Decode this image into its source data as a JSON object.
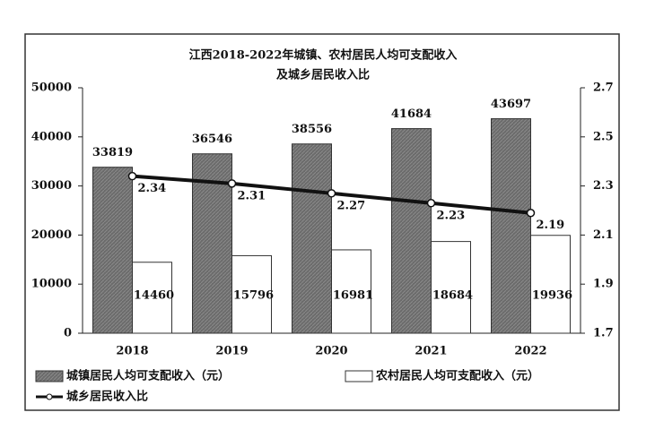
{
  "chart_data": {
    "type": "bar",
    "title": "江西2018-2022年城镇、农村居民人均可支配收入",
    "subtitle": "及城乡居民收入比",
    "categories": [
      "2018",
      "2019",
      "2020",
      "2021",
      "2022"
    ],
    "series": [
      {
        "name": "城镇居民人均可支配收入（元）",
        "color": "#6b6b6b",
        "values": [
          33819,
          36546,
          38556,
          41684,
          43697
        ]
      },
      {
        "name": "农村居民人均可支配收入（元）",
        "color": "#ffffff",
        "values": [
          14460,
          15796,
          16981,
          18684,
          19936
        ]
      },
      {
        "name": "城乡居民收入比",
        "color": "#111111",
        "type": "line",
        "axis": "y2",
        "values": [
          2.34,
          2.31,
          2.27,
          2.23,
          2.19
        ]
      }
    ],
    "ylim": [
      0,
      50000
    ],
    "yticks": [
      0,
      10000,
      20000,
      30000,
      40000,
      50000
    ],
    "y2lim": [
      1.7,
      2.7
    ],
    "y2ticks": [
      1.7,
      1.9,
      2.1,
      2.3,
      2.5,
      2.7
    ]
  }
}
